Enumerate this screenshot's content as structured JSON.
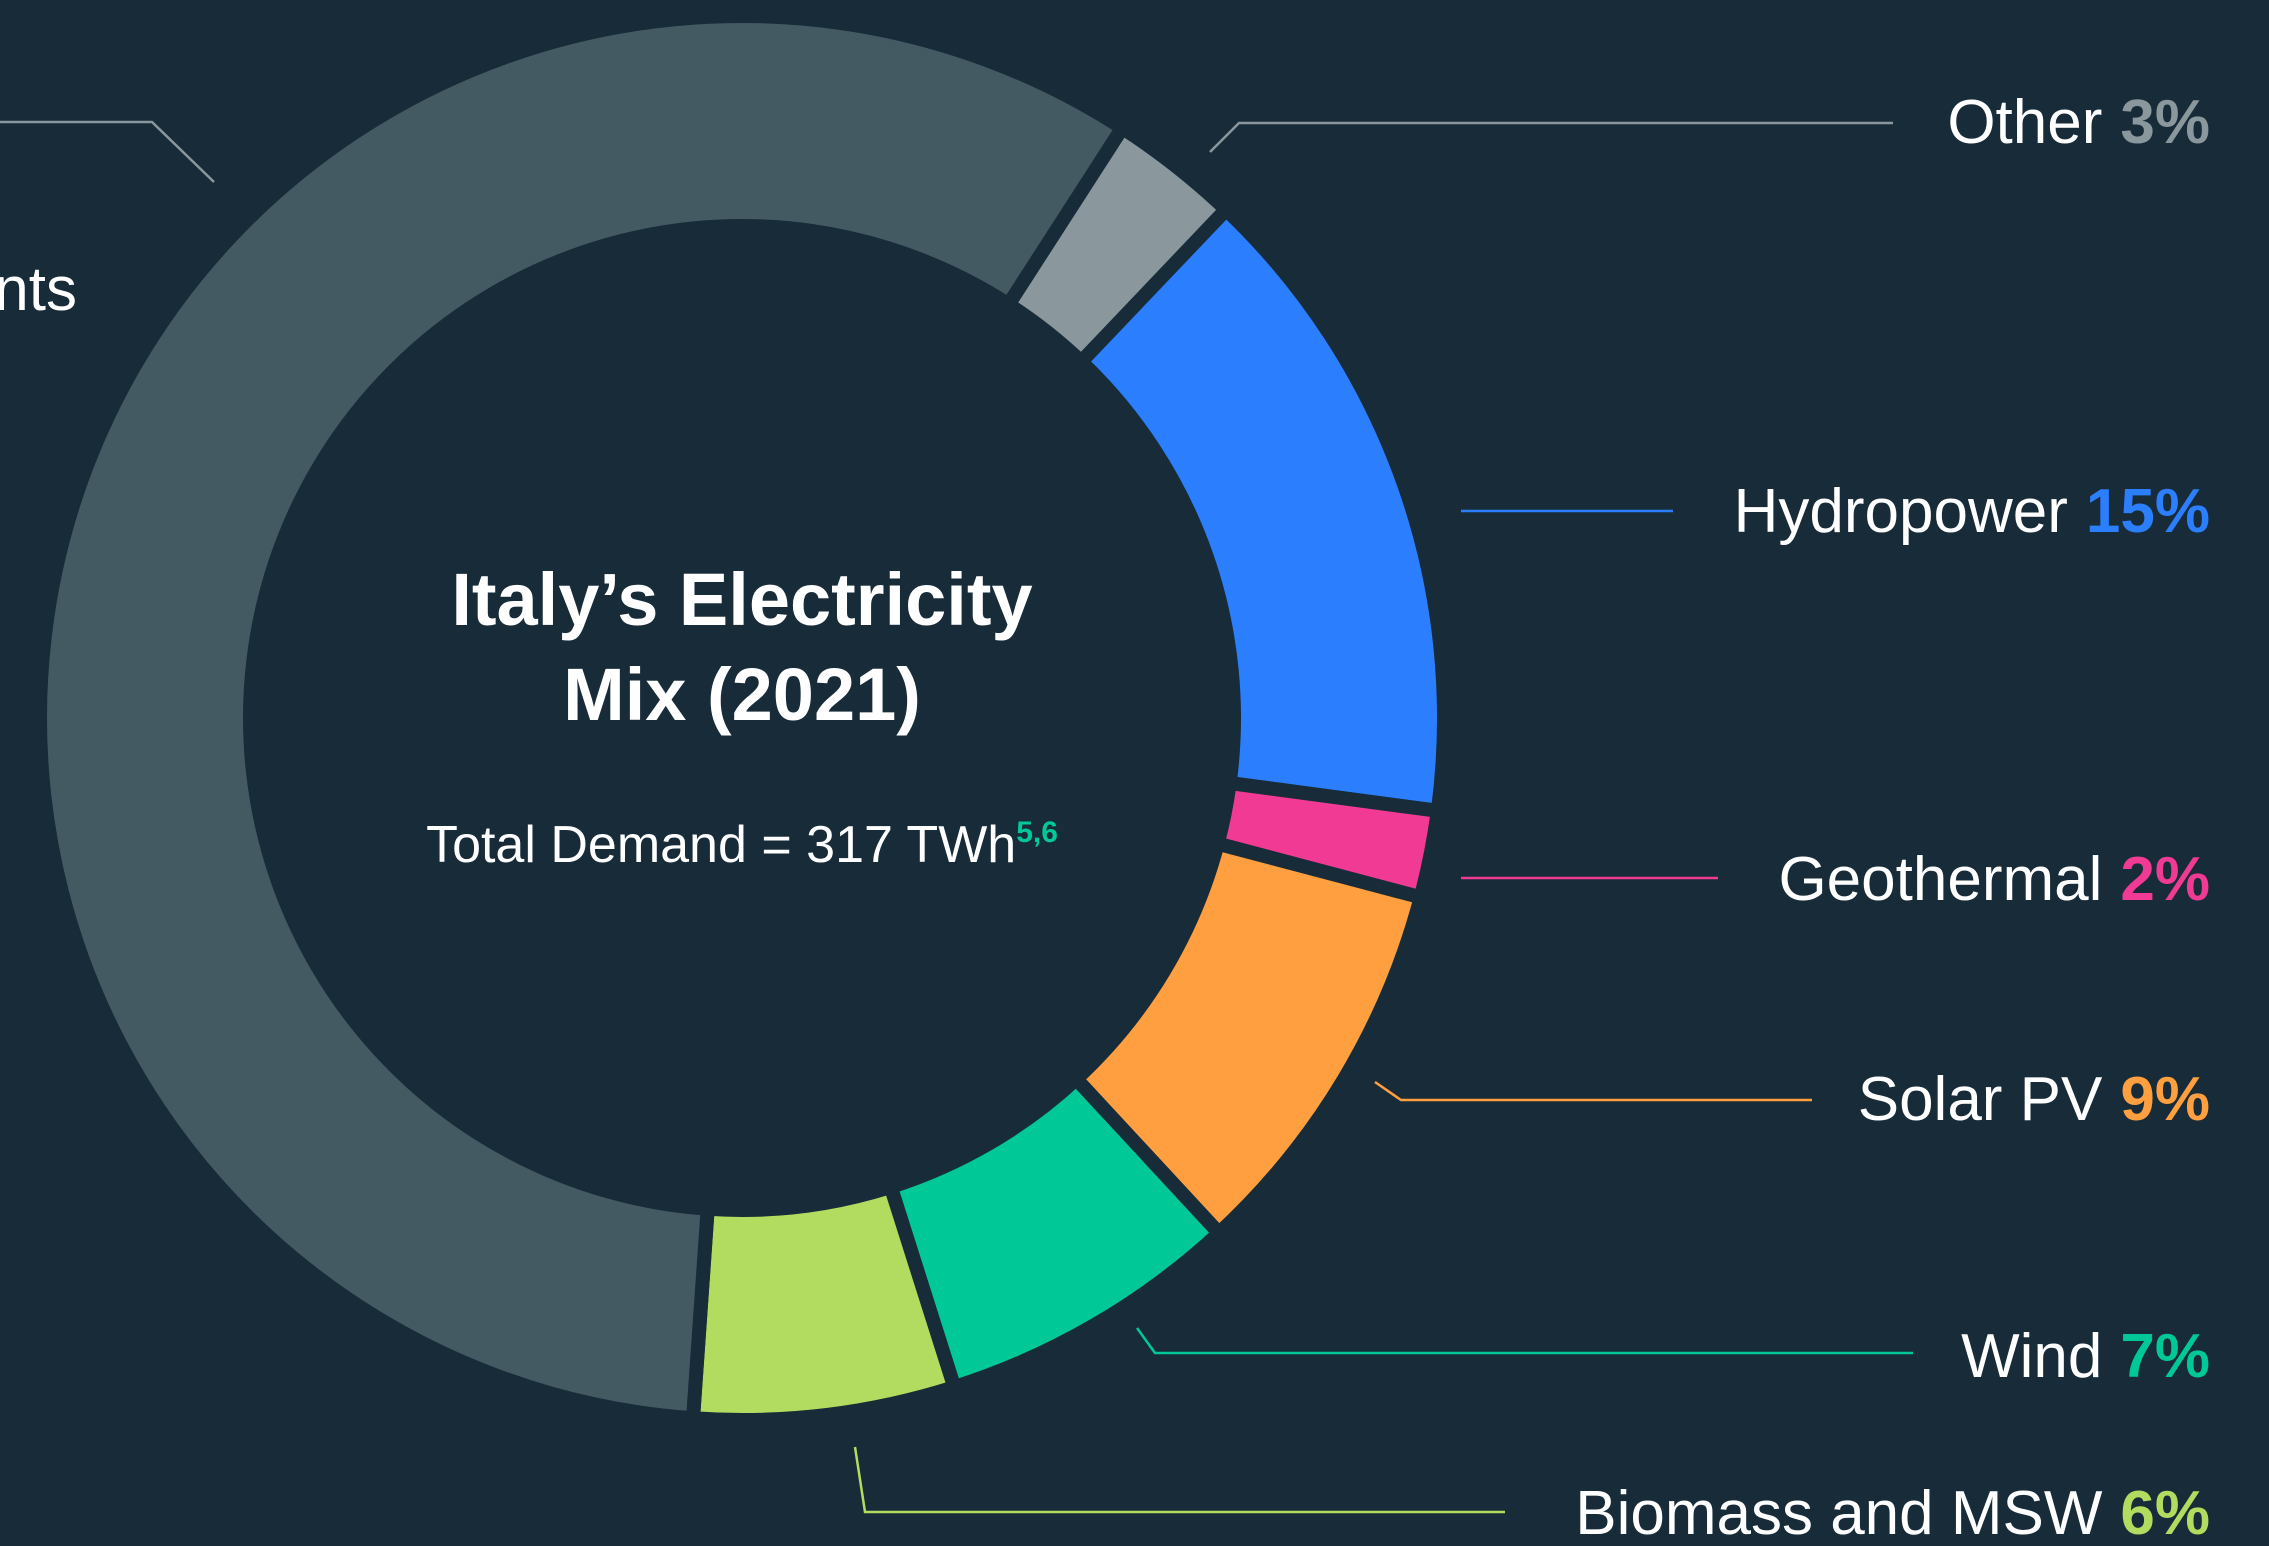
{
  "chart_data": {
    "type": "donut",
    "title": [
      "Italy’s Electricity",
      "Mix (2021)"
    ],
    "subtitle": "Total Demand = 317 TWh",
    "subtitle_note": "5,6",
    "categories": [
      "Other",
      "Hydropower",
      "Geothermal",
      "Solar PV",
      "Wind",
      "Biomass and MSW",
      "nts"
    ],
    "values": [
      3,
      15,
      2,
      9,
      7,
      6,
      58
    ],
    "value_labels": [
      "3%",
      "15%",
      "2%",
      "9%",
      "7%",
      "6%",
      null
    ],
    "colors": [
      "#8a979c",
      "#2b7fff",
      "#f03a93",
      "#ff9f3f",
      "#00c896",
      "#b1dc5f",
      "#435a62"
    ]
  }
}
